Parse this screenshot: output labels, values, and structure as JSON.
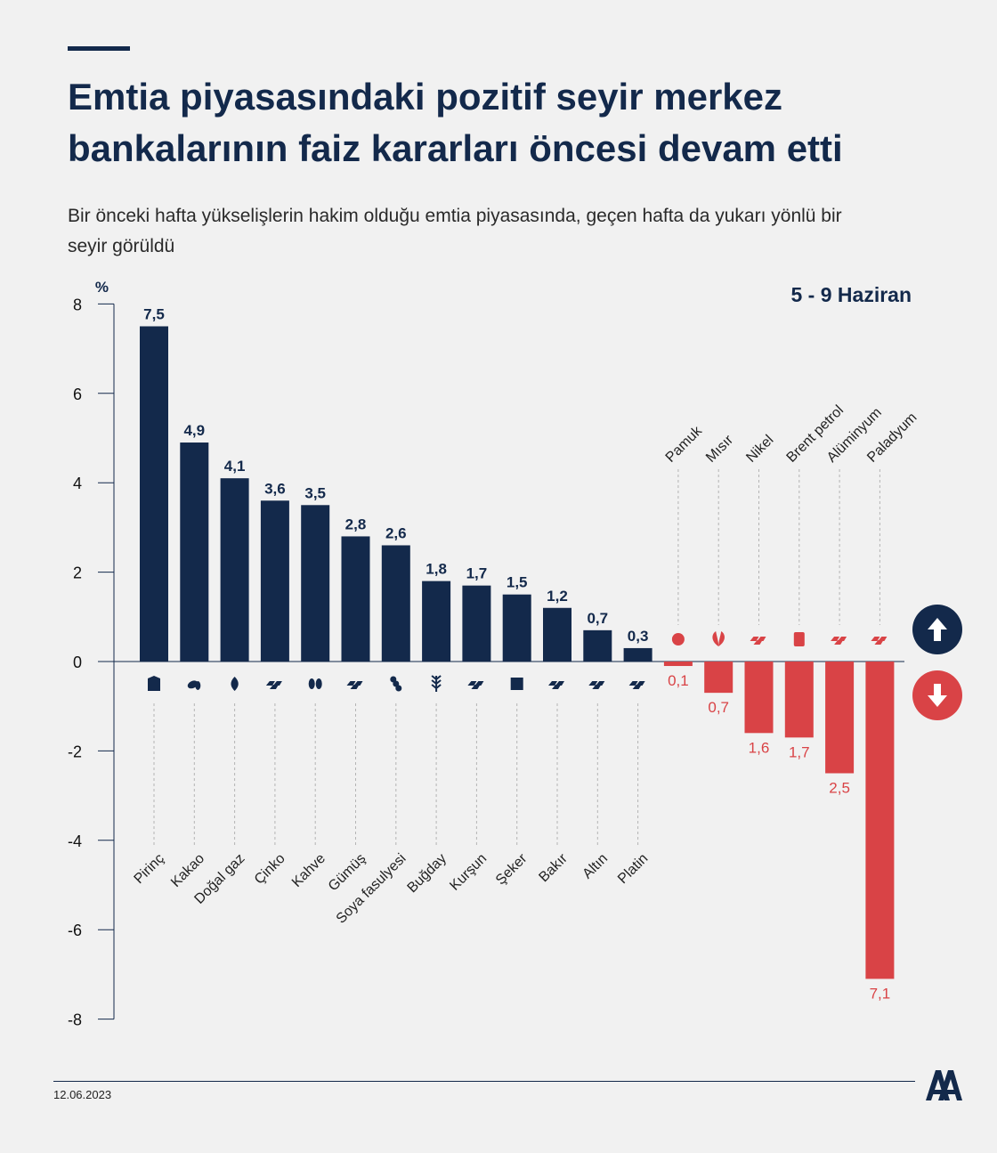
{
  "header": {
    "title": "Emtia piyasasındaki pozitif seyir merkez bankalarının faiz kararları öncesi devam etti",
    "subtitle": "Bir önceki hafta yükselişlerin hakim olduğu emtia piyasasında, geçen hafta da yukarı yönlü bir seyir görüldü",
    "date_range": "5 - 9 Haziran"
  },
  "footer": {
    "date": "12.06.2023",
    "logo_text": "AA"
  },
  "colors": {
    "positive": "#13294b",
    "negative": "#d94346",
    "background": "#f1f1f1"
  },
  "indicators": {
    "up_icon": "arrow-up-icon",
    "down_icon": "arrow-down-icon"
  },
  "chart_data": {
    "type": "bar",
    "ylabel": "%",
    "ylim": [
      -8,
      8
    ],
    "yticks": [
      8,
      6,
      4,
      2,
      0,
      -2,
      -4,
      -6,
      -8
    ],
    "grid": false,
    "categories": [
      "Pirinç",
      "Kakao",
      "Doğal gaz",
      "Çinko",
      "Kahve",
      "Gümüş",
      "Soya fasulyesi",
      "Buğday",
      "Kurşun",
      "Şeker",
      "Bakır",
      "Altın",
      "Platin",
      "Pamuk",
      "Mısır",
      "Nikel",
      "Brent petrol",
      "Alüminyum",
      "Paladyum"
    ],
    "values": [
      7.5,
      4.9,
      4.1,
      3.6,
      3.5,
      2.8,
      2.6,
      1.8,
      1.7,
      1.5,
      1.2,
      0.7,
      0.3,
      -0.1,
      -0.7,
      -1.6,
      -1.7,
      -2.5,
      -7.1
    ],
    "value_labels": [
      "7,5",
      "4,9",
      "4,1",
      "3,6",
      "3,5",
      "2,8",
      "2,6",
      "1,8",
      "1,7",
      "1,5",
      "1,2",
      "0,7",
      "0,3",
      "0,1",
      "0,7",
      "1,6",
      "1,7",
      "2,5",
      "7,1"
    ],
    "icons": [
      "rice-sack-icon",
      "cocoa-bean-icon",
      "gas-flame-icon",
      "metal-ingot-icon",
      "coffee-bean-icon",
      "metal-ingot-icon",
      "soybean-icon",
      "wheat-icon",
      "metal-ingot-icon",
      "sugar-cube-icon",
      "metal-ingot-icon",
      "metal-ingot-icon",
      "metal-ingot-icon",
      "cotton-icon",
      "corn-leaf-icon",
      "metal-ingot-icon",
      "oil-barrel-icon",
      "metal-ingot-icon",
      "metal-ingot-icon"
    ]
  }
}
